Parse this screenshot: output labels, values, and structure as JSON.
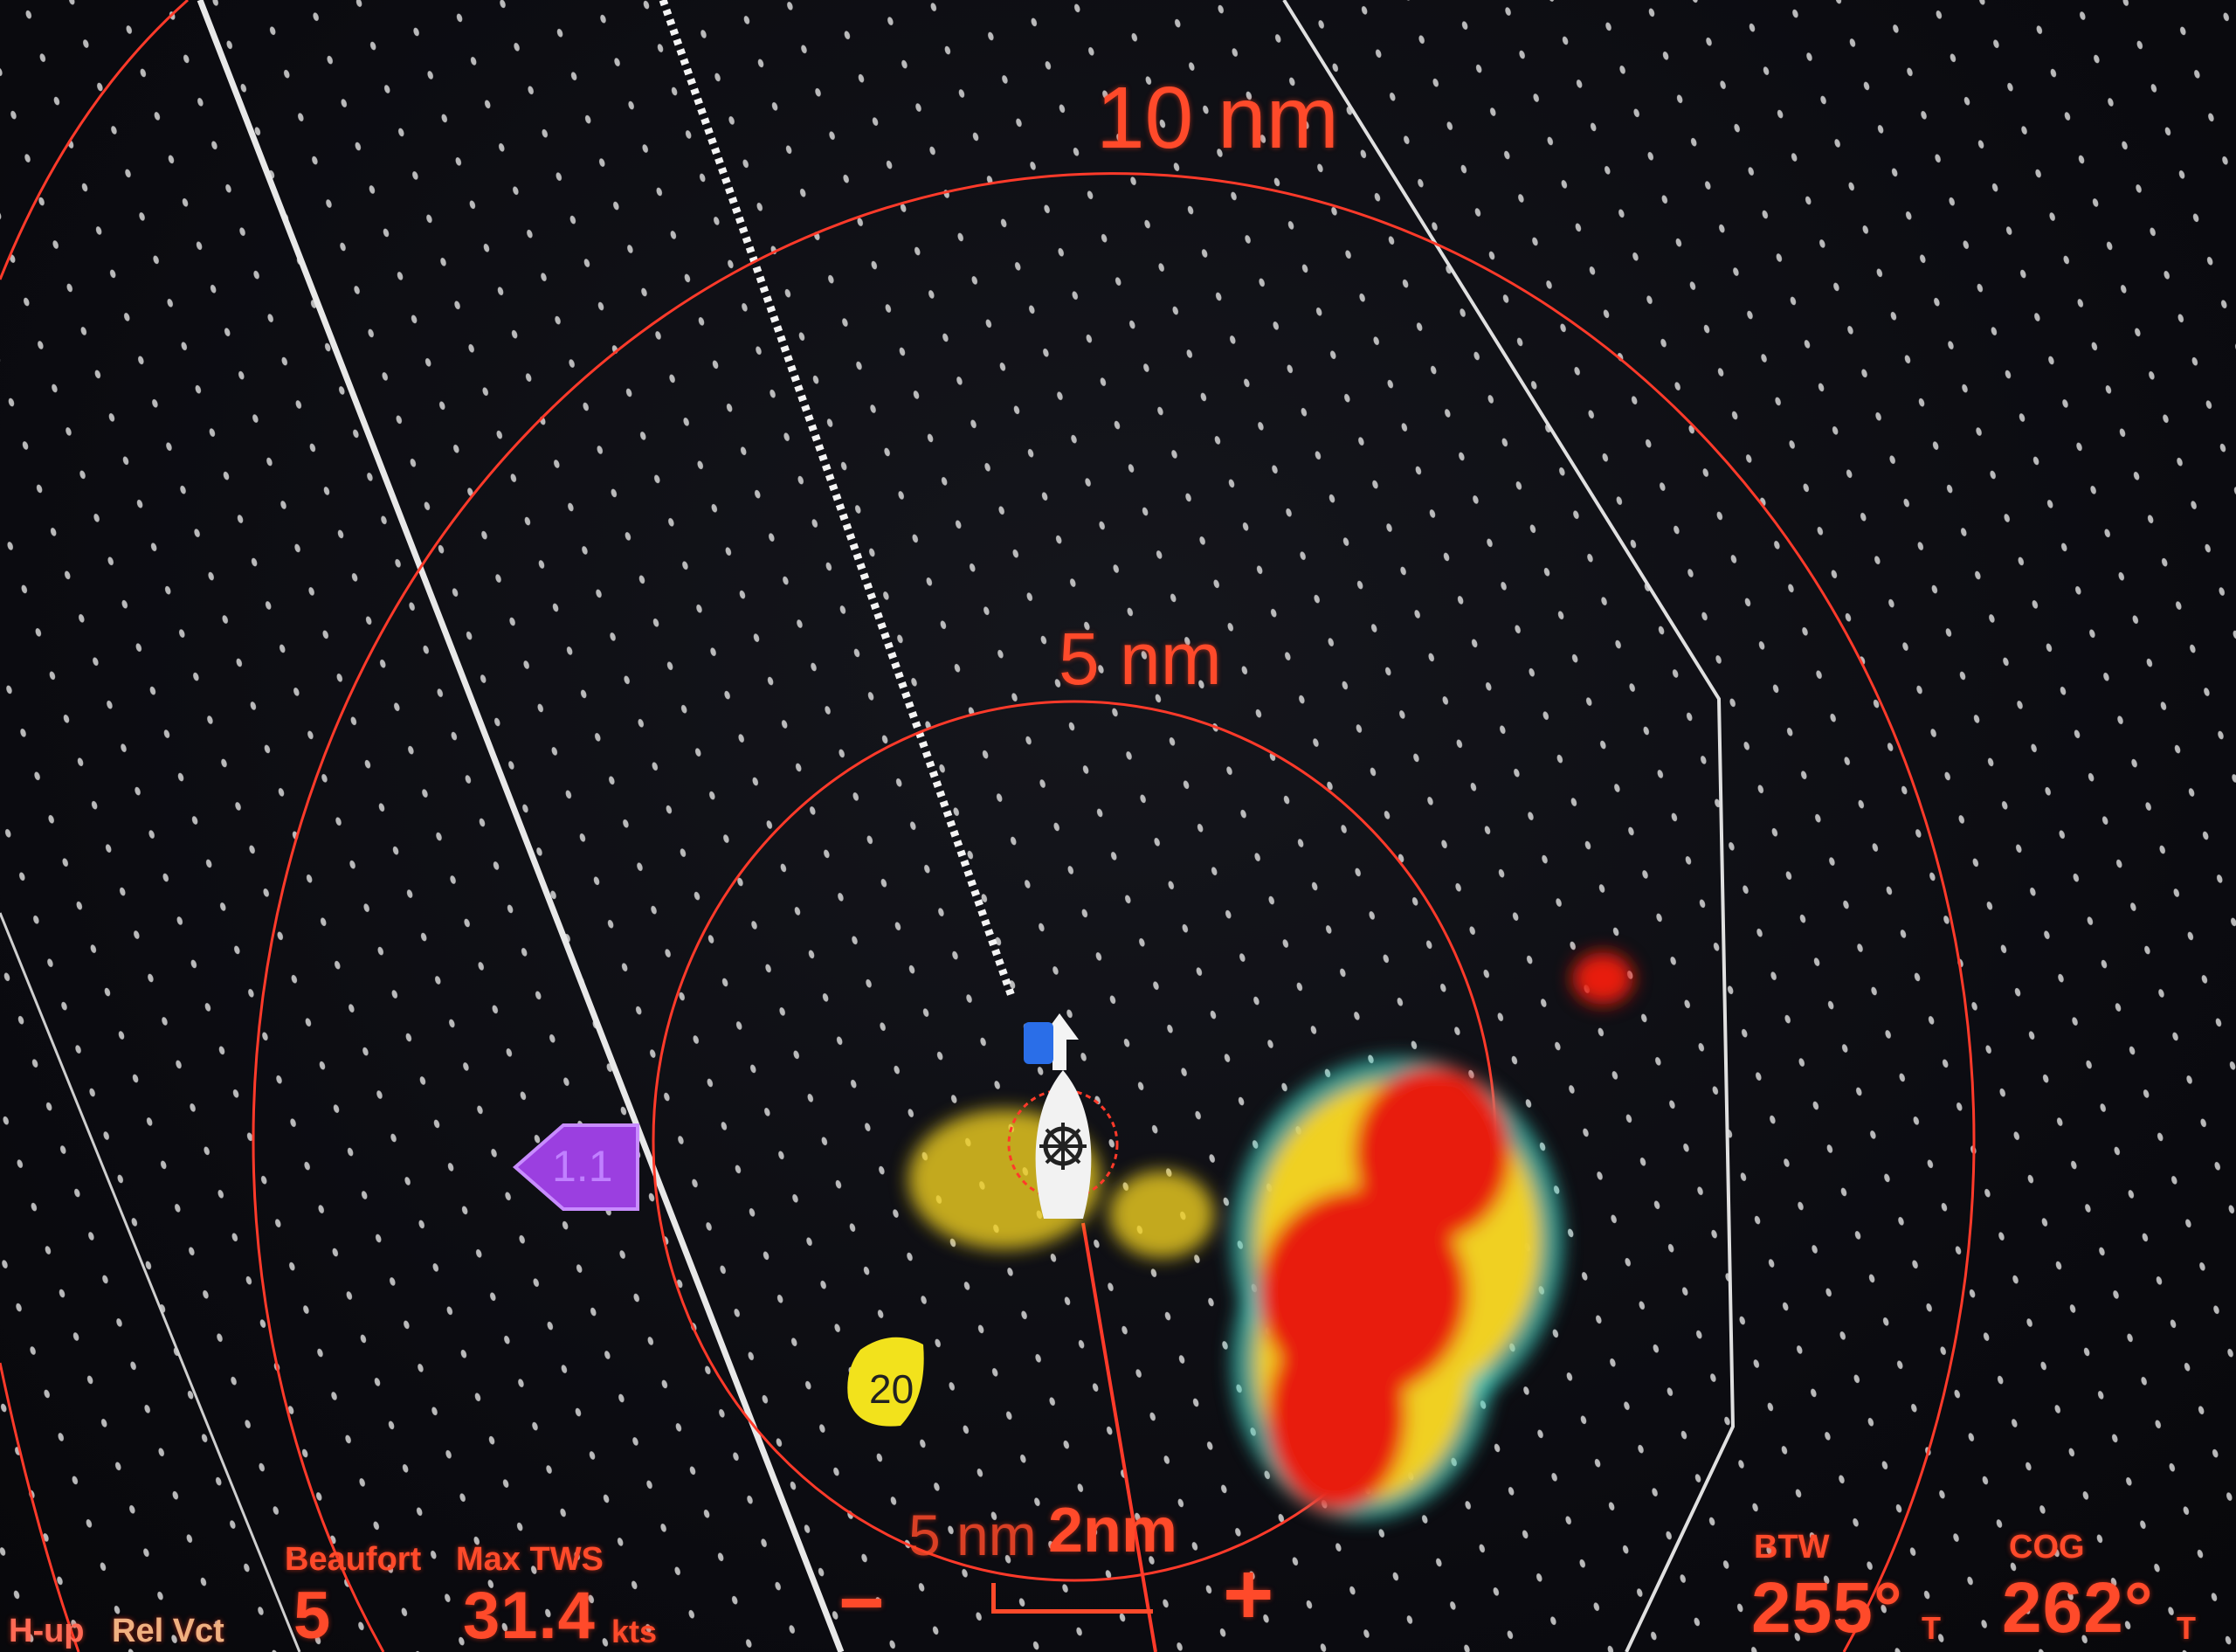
{
  "range_rings": [
    {
      "label": "10 nm"
    },
    {
      "label": "5 nm"
    }
  ],
  "orientation": "H-up",
  "motion_mode": "Rel Vct",
  "beaufort": {
    "label": "Beaufort",
    "value": "5"
  },
  "max_tws": {
    "label": "Max TWS",
    "value": "31.4",
    "unit": "kts"
  },
  "btw": {
    "label": "BTW",
    "value": "255°",
    "unit": "T"
  },
  "cog": {
    "label": "COG",
    "value": "262°",
    "unit": "T"
  },
  "zoom": {
    "minus": "−",
    "plus": "+",
    "scale_bar": "2nm",
    "range_previous": "5 nm"
  },
  "waypoints": [
    {
      "label": "1.1",
      "color": "#9b3fe0"
    },
    {
      "label": "20",
      "color": "#f2e21c"
    }
  ],
  "colors": {
    "ring": "#ff3a2a",
    "text": "#ff4a2a",
    "radar_strong": "#e81c0c",
    "radar_mid": "#f0d020",
    "radar_weak": "#3fd0c0"
  },
  "icons": {
    "vessel": "boat-helm-icon",
    "heading": "arrow-up-icon"
  }
}
